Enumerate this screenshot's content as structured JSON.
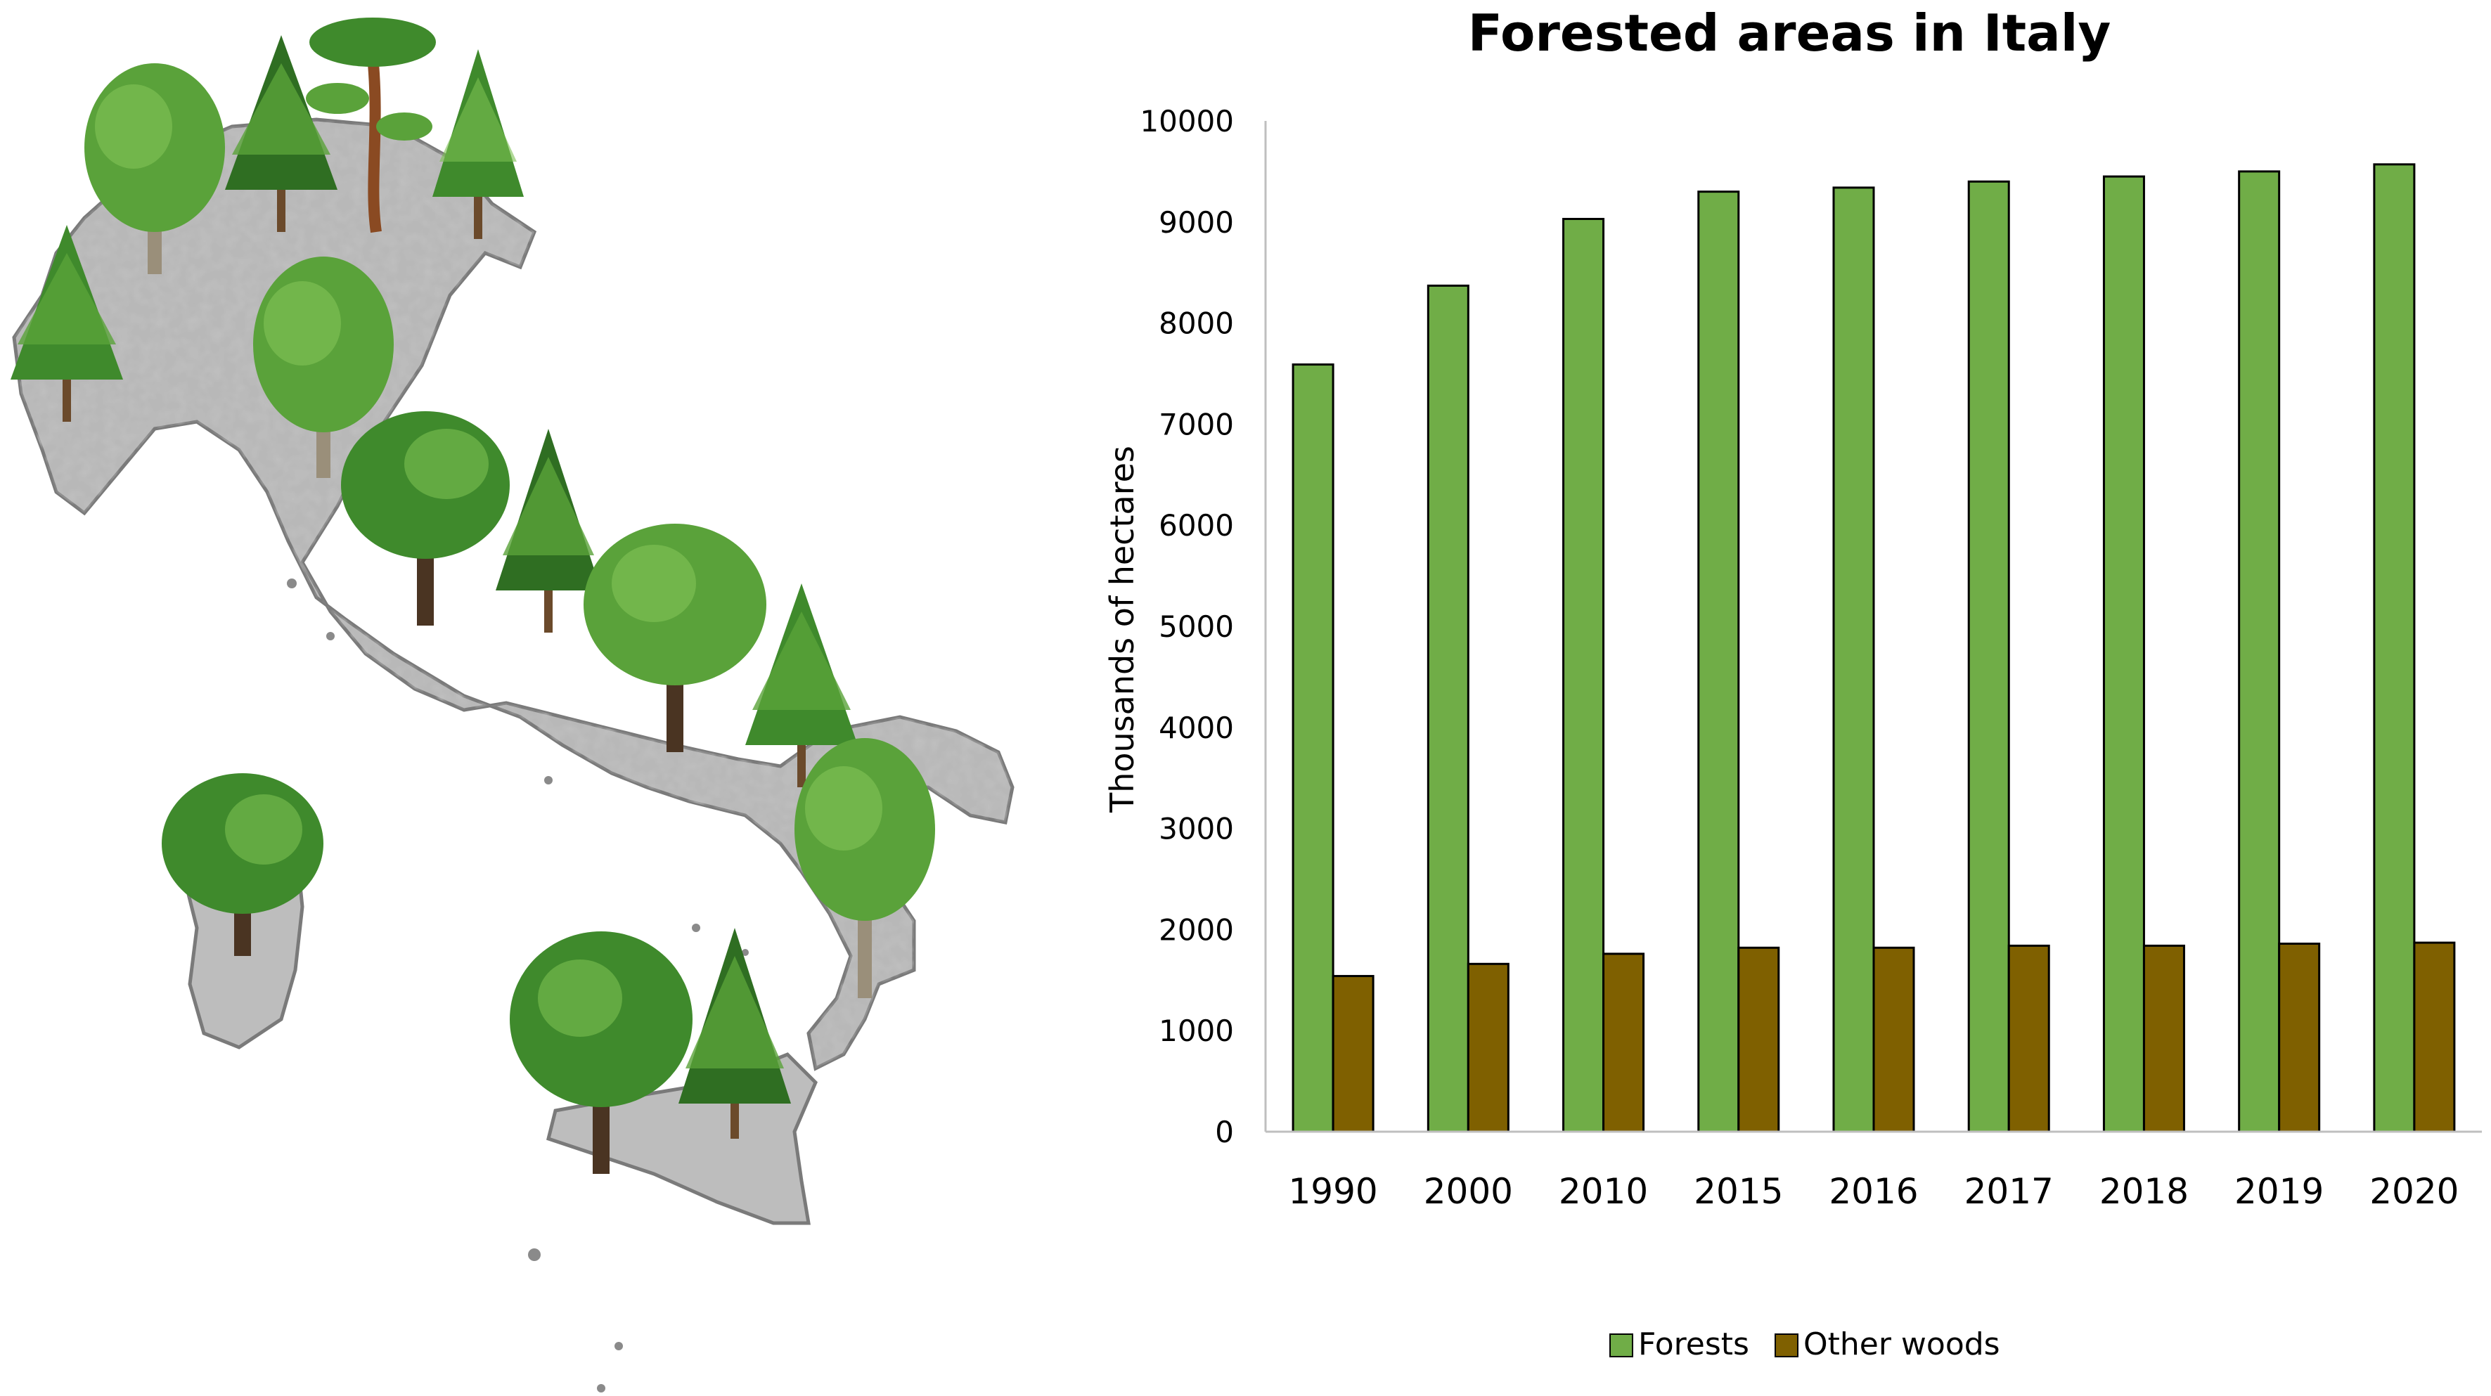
{
  "chart_data": {
    "type": "bar",
    "title": "Forested areas in Italy",
    "xlabel": "",
    "ylabel": "Thousands of hectares",
    "categories": [
      "1990",
      "2000",
      "2010",
      "2015",
      "2016",
      "2017",
      "2018",
      "2019",
      "2020"
    ],
    "series": [
      {
        "name": "Forests",
        "color": "#70ad47",
        "values": [
          7590,
          8370,
          9030,
          9300,
          9340,
          9400,
          9450,
          9500,
          9570
        ]
      },
      {
        "name": "Other woods",
        "color": "#7f6000",
        "values": [
          1540,
          1660,
          1760,
          1820,
          1820,
          1840,
          1840,
          1860,
          1870
        ]
      }
    ],
    "ylim": [
      0,
      10000
    ],
    "yticks": [
      0,
      1000,
      2000,
      3000,
      4000,
      5000,
      6000,
      7000,
      8000,
      9000,
      10000
    ],
    "grid": false,
    "legend_position": "bottom-center"
  },
  "illustration": {
    "description_icon": "italy-map-with-trees-illustration",
    "map_color": "#9a9a9a",
    "tree_colors": [
      "#3f8a2c",
      "#5aa23a",
      "#2f6e22",
      "#7cbf52"
    ]
  }
}
